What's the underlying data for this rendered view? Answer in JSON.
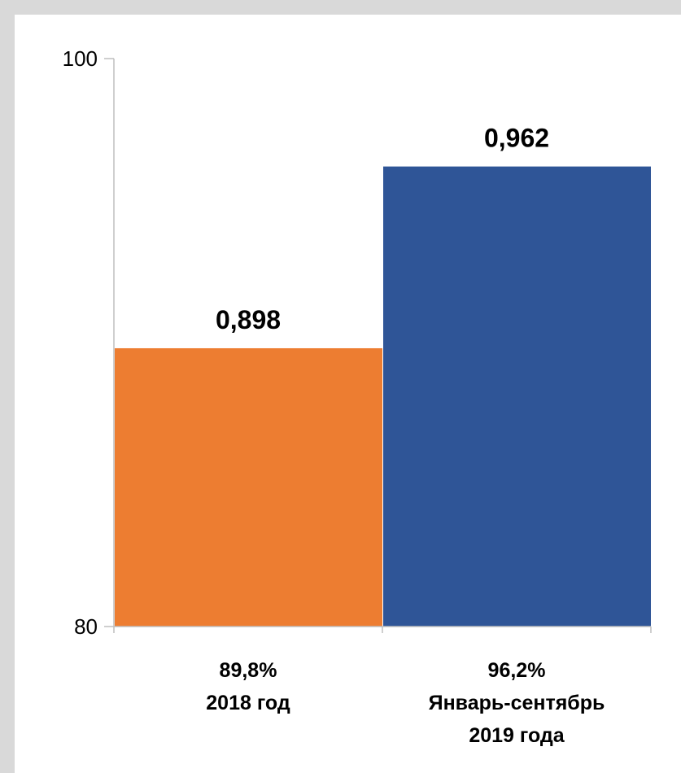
{
  "chart_data": {
    "type": "bar",
    "categories": [
      [
        "89,8%",
        "2018 год"
      ],
      [
        "96,2%",
        "Январь-сентябрь",
        "2019 года"
      ]
    ],
    "values": [
      89.8,
      96.2
    ],
    "data_labels": [
      "0,898",
      "0,962"
    ],
    "colors": [
      "#ed7d31",
      "#2f5597"
    ],
    "ylim": [
      80,
      100
    ],
    "yticks": [
      "80",
      "100"
    ],
    "grid": false,
    "legend": "none"
  }
}
